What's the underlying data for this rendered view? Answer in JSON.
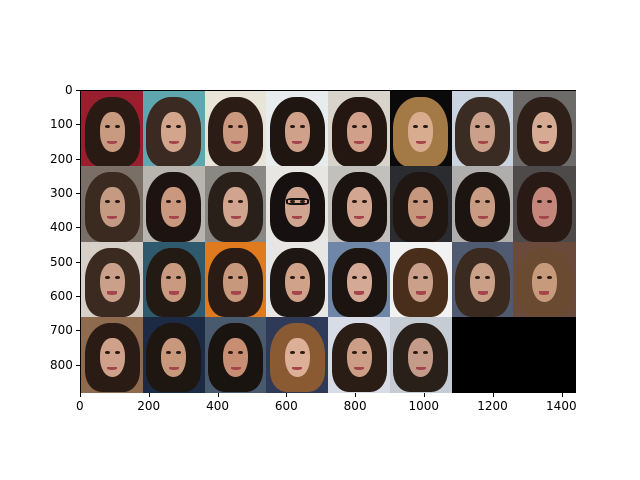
{
  "figure": {
    "x_ticks": [
      "0",
      "200",
      "400",
      "600",
      "800",
      "1000",
      "1200",
      "1400"
    ],
    "y_ticks": [
      "0",
      "100",
      "200",
      "300",
      "400",
      "500",
      "600",
      "700",
      "800"
    ],
    "grid_rows": 4,
    "grid_cols": 8,
    "image_count": 30,
    "empty_cell_color": "#000000",
    "tiles": [
      {
        "bg": "#9a1f2e",
        "hair": "#2a1a14",
        "skin": "#c89a80"
      },
      {
        "bg": "#5fa7b0",
        "hair": "#3a2a22",
        "skin": "#d2a58c"
      },
      {
        "bg": "#e9e4d8",
        "hair": "#2b1d16",
        "skin": "#c9987e"
      },
      {
        "bg": "#e7ecef",
        "hair": "#1f1612",
        "skin": "#cfa08a"
      },
      {
        "bg": "#d8d4cc",
        "hair": "#241711",
        "skin": "#d0a08a"
      },
      {
        "bg": "#0a0a0a",
        "hair": "#a37a45",
        "skin": "#d8ac8e"
      },
      {
        "bg": "#c9d4e0",
        "hair": "#3a2c22",
        "skin": "#caa08a"
      },
      {
        "bg": "#6c6b69",
        "hair": "#2e2018",
        "skin": "#d6ab94"
      },
      {
        "bg": "#7a6f66",
        "hair": "#3b2a20",
        "skin": "#c49a82"
      },
      {
        "bg": "#b8b4ae",
        "hair": "#1d1411",
        "skin": "#c9987e"
      },
      {
        "bg": "#8a8884",
        "hair": "#2a201a",
        "skin": "#d0a48e"
      },
      {
        "bg": "#e8e6e2",
        "hair": "#161110",
        "skin": "#cfa490",
        "glasses": true
      },
      {
        "bg": "#c2c0bc",
        "hair": "#1a1310",
        "skin": "#d2a690"
      },
      {
        "bg": "#2a2c30",
        "hair": "#201612",
        "skin": "#c6977d"
      },
      {
        "bg": "#b0aeac",
        "hair": "#1b1411",
        "skin": "#c99b82"
      },
      {
        "bg": "#4e4a4a",
        "hair": "#2a1a16",
        "skin": "#c4867a"
      },
      {
        "bg": "#d6d0c8",
        "hair": "#3a2a20",
        "skin": "#cba08a"
      },
      {
        "bg": "#2f5a6e",
        "hair": "#241a14",
        "skin": "#c99a80"
      },
      {
        "bg": "#e07a1e",
        "hair": "#2a1c15",
        "skin": "#c8987c"
      },
      {
        "bg": "#e8e6e4",
        "hair": "#1e1612",
        "skin": "#d0a28a"
      },
      {
        "bg": "#6f86a6",
        "hair": "#1c1410",
        "skin": "#d4aa96"
      },
      {
        "bg": "#f2f2f2",
        "hair": "#4a2e1c",
        "skin": "#caa08a"
      },
      {
        "bg": "#505a70",
        "hair": "#3a2a20",
        "skin": "#caa088"
      },
      {
        "bg": "#6a4a3a",
        "hair": "#6a4a30",
        "skin": "#c89a7c"
      },
      {
        "bg": "#8e6a4e",
        "hair": "#2a1c14",
        "skin": "#cfa18a"
      },
      {
        "bg": "#1c2a44",
        "hair": "#1d1611",
        "skin": "#c8987c"
      },
      {
        "bg": "#4a5a6e",
        "hair": "#1a1411",
        "skin": "#c88e74"
      },
      {
        "bg": "#2e3a58",
        "hair": "#8a5a32",
        "skin": "#dcb096"
      },
      {
        "bg": "#d8dce6",
        "hair": "#2a1d16",
        "skin": "#cc9e86"
      },
      {
        "bg": "#c6ccd4",
        "hair": "#2a201a",
        "skin": "#c49a88"
      }
    ]
  }
}
